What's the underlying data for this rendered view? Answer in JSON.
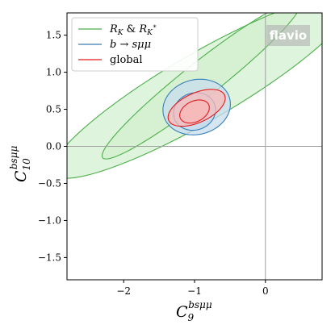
{
  "chart_data": {
    "type": "contour",
    "xlabel": "C_9^{bsμμ}",
    "ylabel": "C_10^{bsμμ}",
    "xlabel_main": "C",
    "xlabel_sub": "9",
    "xlabel_sup": "bsμμ",
    "ylabel_main": "C",
    "ylabel_sub": "10",
    "ylabel_sup": "bsμμ",
    "xlim": [
      -2.8,
      0.8
    ],
    "ylim": [
      -1.8,
      1.8
    ],
    "xticks": [
      -2,
      -1,
      0
    ],
    "xtick_labels": [
      "−2",
      "−1",
      "0"
    ],
    "yticks": [
      -1.5,
      -1.0,
      -0.5,
      0.0,
      0.5,
      1.0,
      1.5
    ],
    "ytick_labels": [
      "−1.5",
      "−1.0",
      "−0.5",
      "0.0",
      "0.5",
      "1.0",
      "1.5"
    ],
    "reference_lines": {
      "x": 0,
      "y": 0,
      "color": "#a0a0a0"
    },
    "legend_position": "upper-left",
    "watermark": "flavio",
    "series": [
      {
        "name": "R_K & R_{K*}",
        "legend_label": "R_K & R_{K*}",
        "color": "#4daf4a",
        "fill": "#d3f0d0",
        "contours": [
          {
            "level": "2σ",
            "ellipse": {
              "center": [
                -0.9,
                0.8
              ],
              "semi_axes": [
                2.4,
                0.46
              ],
              "angle_deg": 29
            }
          },
          {
            "level": "1σ",
            "ellipse": {
              "center": [
                -0.9,
                0.9
              ],
              "semi_axes": [
                1.75,
                0.24
              ],
              "angle_deg": 37
            }
          }
        ]
      },
      {
        "name": "b → sμμ",
        "legend_label": "b → sμμ",
        "color": "#377eb8",
        "fill": "#c7dcee",
        "contours": [
          {
            "level": "2σ",
            "ellipse": {
              "center": [
                -0.97,
                0.53
              ],
              "semi_axes": [
                0.48,
                0.37
              ],
              "angle_deg": 12
            }
          },
          {
            "level": "1σ",
            "ellipse": {
              "center": [
                -1.0,
                0.47
              ],
              "semi_axes": [
                0.3,
                0.25
              ],
              "angle_deg": 15
            }
          }
        ]
      },
      {
        "name": "global",
        "legend_label": "global",
        "color": "#e41a1c",
        "fill": "#f8b9b8",
        "contours": [
          {
            "level": "2σ",
            "ellipse": {
              "center": [
                -0.97,
                0.52
              ],
              "semi_axes": [
                0.43,
                0.2
              ],
              "angle_deg": 23
            }
          },
          {
            "level": "1σ",
            "ellipse": {
              "center": [
                -1.0,
                0.47
              ],
              "semi_axes": [
                0.22,
                0.14
              ],
              "angle_deg": 24
            }
          }
        ]
      }
    ]
  }
}
